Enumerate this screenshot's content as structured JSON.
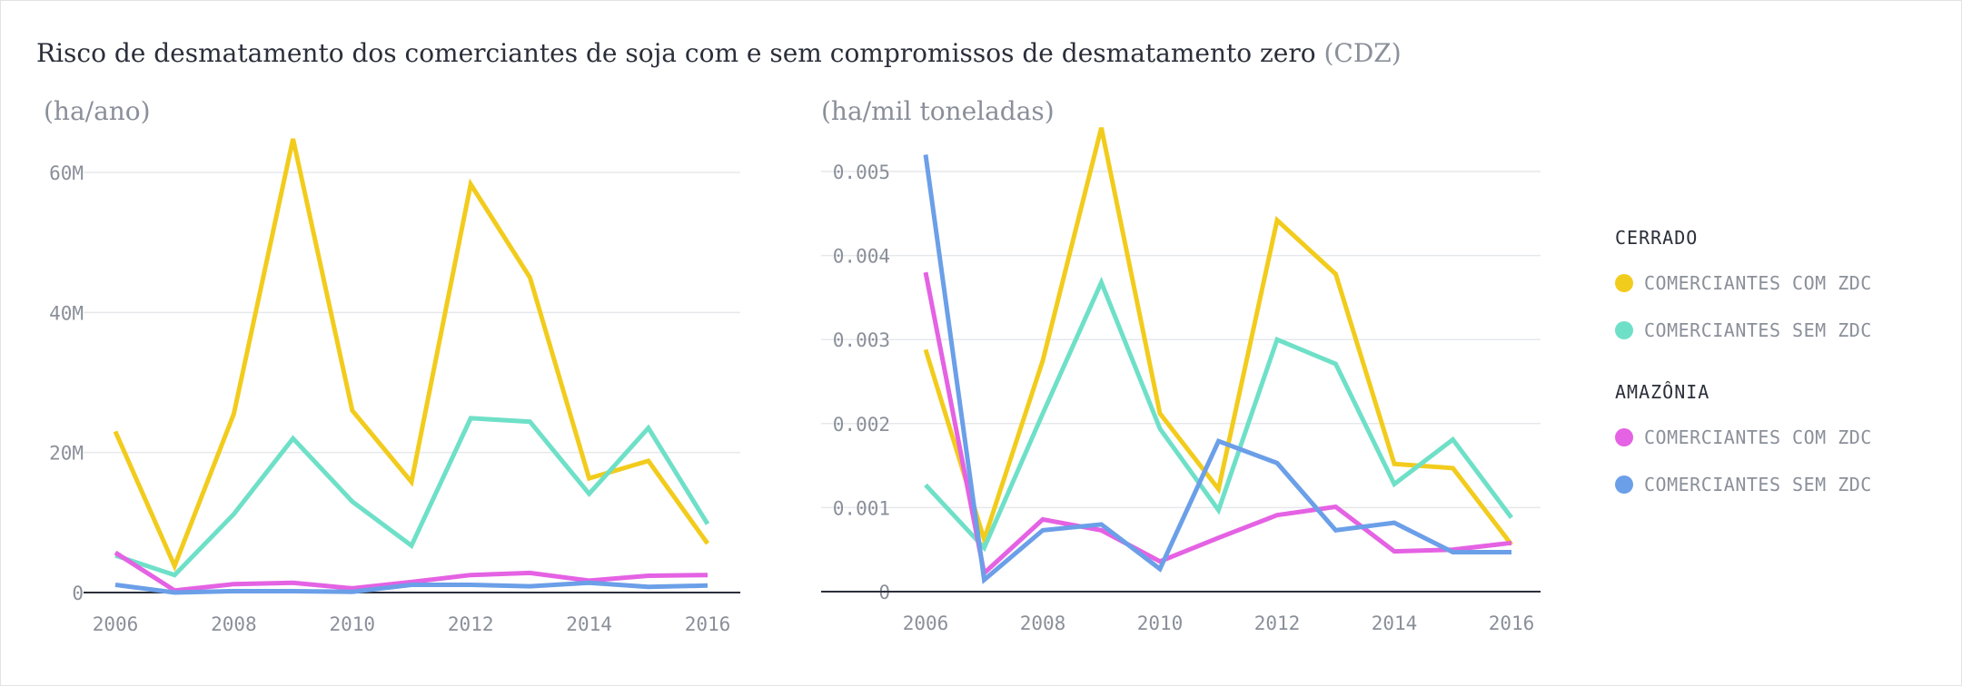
{
  "title": {
    "main": "Risco de desmatamento dos comerciantes de soja com e sem compromissos de desmatamento zero",
    "suffix": "(CDZ)"
  },
  "legend": {
    "groups": [
      {
        "title": "CERRADO",
        "items": [
          {
            "label": "COMERCIANTES COM ZDC",
            "color": "#f2cc1d"
          },
          {
            "label": "COMERCIANTES SEM ZDC",
            "color": "#6fe0c8"
          }
        ]
      },
      {
        "title": "AMAZÔNIA",
        "items": [
          {
            "label": "COMERCIANTES COM ZDC",
            "color": "#e462e3"
          },
          {
            "label": "COMERCIANTES SEM ZDC",
            "color": "#6b9fe8"
          }
        ]
      }
    ]
  },
  "chart_data": [
    {
      "type": "line",
      "ylabel": "(ha/ano)",
      "x": [
        2006,
        2007,
        2008,
        2009,
        2010,
        2011,
        2012,
        2013,
        2014,
        2015,
        2016
      ],
      "xticks": [
        "2006",
        "2008",
        "2010",
        "2012",
        "2014",
        "2016"
      ],
      "yticks": [
        {
          "value": 0,
          "label": "0"
        },
        {
          "value": 20000000,
          "label": "20M"
        },
        {
          "value": 40000000,
          "label": "40M"
        },
        {
          "value": 60000000,
          "label": "60M"
        }
      ],
      "ylim": [
        0,
        60000000
      ],
      "grid": true,
      "series": [
        {
          "name": "Cerrado - COMERCIANTES COM ZDC",
          "color": "#f2cc1d",
          "values": [
            23000000,
            3800000,
            25500000,
            64800000,
            26000000,
            15800000,
            58300000,
            45000000,
            16300000,
            18800000,
            7000000
          ]
        },
        {
          "name": "Cerrado - COMERCIANTES SEM ZDC",
          "color": "#6fe0c8",
          "values": [
            5300000,
            2500000,
            11200000,
            22000000,
            13000000,
            6700000,
            24900000,
            24400000,
            14100000,
            23500000,
            9800000
          ]
        },
        {
          "name": "Amazônia - COMERCIANTES COM ZDC",
          "color": "#e462e3",
          "values": [
            5700000,
            300000,
            1200000,
            1400000,
            600000,
            1500000,
            2500000,
            2800000,
            1700000,
            2400000,
            2500000
          ]
        },
        {
          "name": "Amazônia - COMERCIANTES SEM ZDC",
          "color": "#6b9fe8",
          "values": [
            1100000,
            0,
            200000,
            200000,
            100000,
            1100000,
            1100000,
            900000,
            1400000,
            800000,
            1000000
          ]
        }
      ]
    },
    {
      "type": "line",
      "ylabel": "(ha/mil toneladas)",
      "x": [
        2006,
        2007,
        2008,
        2009,
        2010,
        2011,
        2012,
        2013,
        2014,
        2015,
        2016
      ],
      "xticks": [
        "2006",
        "2008",
        "2010",
        "2012",
        "2014",
        "2016"
      ],
      "yticks": [
        {
          "value": 0,
          "label": "0"
        },
        {
          "value": 0.001,
          "label": "0.001"
        },
        {
          "value": 0.002,
          "label": "0.002"
        },
        {
          "value": 0.003,
          "label": "0.003"
        },
        {
          "value": 0.004,
          "label": "0.004"
        },
        {
          "value": 0.005,
          "label": "0.005"
        }
      ],
      "ylim": [
        0,
        0.005
      ],
      "grid": true,
      "series": [
        {
          "name": "Cerrado - COMERCIANTES COM ZDC",
          "color": "#f2cc1d",
          "values": [
            0.00288,
            0.00062,
            0.00275,
            0.00552,
            0.00212,
            0.00122,
            0.00442,
            0.00378,
            0.00152,
            0.00147,
            0.00056
          ]
        },
        {
          "name": "Cerrado - COMERCIANTES SEM ZDC",
          "color": "#6fe0c8",
          "values": [
            0.00127,
            0.00052,
            0.00212,
            0.00368,
            0.00194,
            0.00097,
            0.003,
            0.00271,
            0.00128,
            0.00181,
            0.00088
          ]
        },
        {
          "name": "Amazônia - COMERCIANTES COM ZDC",
          "color": "#e462e3",
          "values": [
            0.0038,
            0.00022,
            0.00086,
            0.00073,
            0.00036,
            0.00064,
            0.00091,
            0.00101,
            0.00048,
            0.0005,
            0.00058
          ]
        },
        {
          "name": "Amazônia - COMERCIANTES SEM ZDC",
          "color": "#6b9fe8",
          "values": [
            0.0052,
            0.00014,
            0.00073,
            0.0008,
            0.00027,
            0.00179,
            0.00153,
            0.00073,
            0.00082,
            0.00047,
            0.00047
          ]
        }
      ]
    }
  ]
}
